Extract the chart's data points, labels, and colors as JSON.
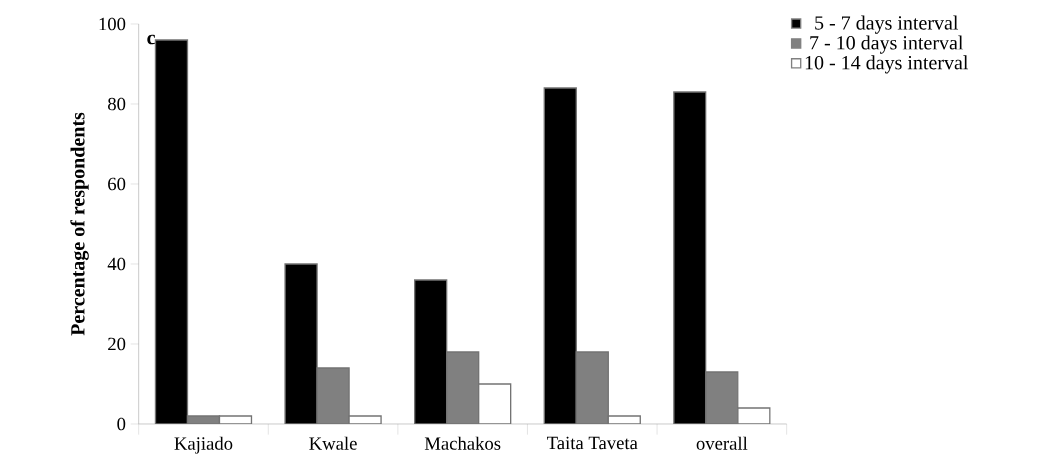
{
  "chart_data": {
    "type": "bar",
    "ylabel": "Percentage of respondents",
    "categories": [
      "Kajiado",
      "Kwale",
      "Machakos",
      "Taita Taveta",
      "overall"
    ],
    "series": [
      {
        "name": "5 - 7 days interval",
        "color": "#000000",
        "values": [
          96,
          40,
          36,
          84,
          83
        ]
      },
      {
        "name": "7 - 10 days interval",
        "color": "#808080",
        "values": [
          2,
          14,
          18,
          18,
          13
        ]
      },
      {
        "name": "10 - 14 days interval",
        "color": "#ffffff",
        "values": [
          2,
          2,
          10,
          2,
          4
        ]
      }
    ],
    "ylim": [
      0,
      100
    ],
    "yticks": [
      0,
      20,
      40,
      60,
      80,
      100
    ],
    "annotations": [
      "c"
    ],
    "legend": "top right",
    "grid": false
  }
}
